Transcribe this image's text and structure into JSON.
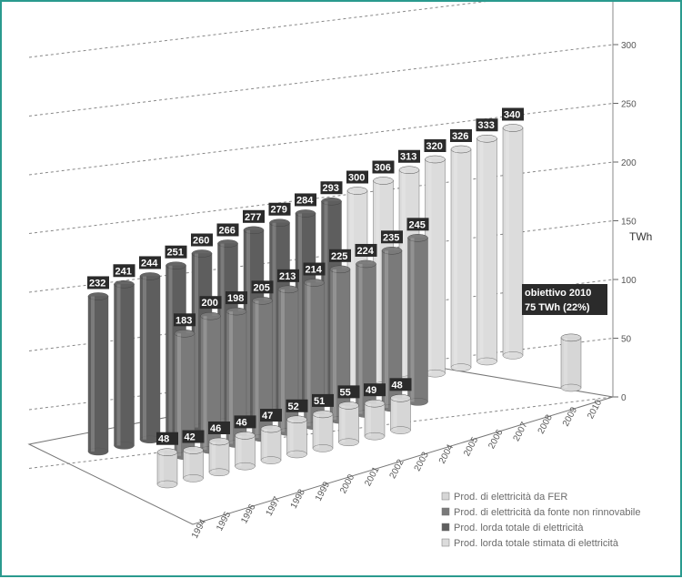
{
  "chart_data": {
    "type": "bar",
    "chart_style": "3d-cylinder-grouped",
    "categories": [
      "1994",
      "1995",
      "1996",
      "1997",
      "1998",
      "1999",
      "2000",
      "2001",
      "2002",
      "2003",
      "2004",
      "2005",
      "2006",
      "2007",
      "2008",
      "2009",
      "2010"
    ],
    "series": [
      {
        "name": "Prod. di elettricità da FER",
        "color": "#d6d6d6",
        "values": [
          48,
          42,
          46,
          46,
          47,
          52,
          51,
          55,
          49,
          48,
          null,
          null,
          null,
          null,
          null,
          null,
          75
        ]
      },
      {
        "name": "Prod. di elettricità da fonte non rinnovabile",
        "color": "#7a7a7a",
        "values": [
          null,
          null,
          183,
          200,
          198,
          205,
          213,
          214,
          225,
          224,
          235,
          245,
          null,
          null,
          null,
          null,
          null
        ]
      },
      {
        "name": "Prod. lorda totale di elettricità",
        "color": "#5e5e5e",
        "values": [
          232,
          241,
          244,
          251,
          260,
          266,
          277,
          279,
          284,
          293,
          null,
          null,
          null,
          null,
          null,
          null,
          null
        ]
      },
      {
        "name": "Prod. lorda totale stimata di elettricità",
        "color": "#dcdcdc",
        "values": [
          null,
          null,
          null,
          null,
          null,
          null,
          null,
          null,
          null,
          null,
          300,
          306,
          313,
          320,
          326,
          333,
          340
        ]
      }
    ],
    "data_labels": {
      "fer": [
        "48",
        "42",
        "46",
        "46",
        "47",
        "52",
        "51",
        "55",
        "49",
        "48"
      ],
      "nonrinn": [
        "183",
        "200",
        "198",
        "205",
        "213",
        "214",
        "225",
        "224",
        "235",
        "245"
      ],
      "lorda": [
        "232",
        "241",
        "244",
        "251",
        "260",
        "266",
        "277",
        "279",
        "284",
        "293"
      ],
      "stimata": [
        "300",
        "306",
        "313",
        "320",
        "326",
        "333",
        "340"
      ]
    },
    "yaxis": {
      "label": "TWh",
      "ticks": [
        "0",
        "50",
        "100",
        "150",
        "200",
        "250",
        "300",
        "350"
      ],
      "ylim": [
        0,
        350
      ]
    },
    "annotation": {
      "line1": "obiettivo 2010",
      "line2": "75 TWh (22%)"
    },
    "grid": true,
    "legend_position": "bottom-right"
  }
}
